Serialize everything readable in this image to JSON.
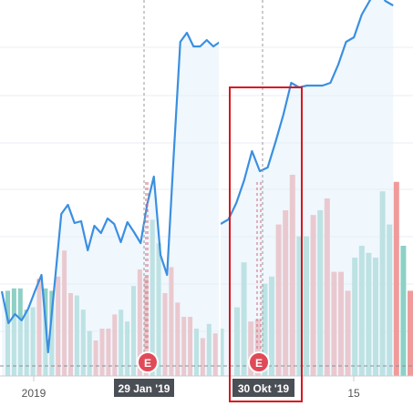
{
  "chart_data": [
    {
      "type": "bar+line",
      "title": "",
      "x_tick_labels": [
        "2019"
      ],
      "marker": {
        "letter": "E",
        "date_label": "29 Jan '19"
      },
      "colors": {
        "up": "#8ed0c5",
        "down": "#f09a9a",
        "line": "#3b8fe0",
        "area": "#e4f0fb",
        "marker": "#e04a58"
      },
      "volume_bars": [
        {
          "value": 36,
          "dir": "up"
        },
        {
          "value": 37,
          "dir": "up"
        },
        {
          "value": 37,
          "dir": "up"
        },
        {
          "value": 28,
          "dir": "up"
        },
        {
          "value": 29,
          "dir": "up"
        },
        {
          "value": 41,
          "dir": "down"
        },
        {
          "value": 37,
          "dir": "up"
        },
        {
          "value": 36,
          "dir": "up"
        },
        {
          "value": 42,
          "dir": "down"
        },
        {
          "value": 53,
          "dir": "down"
        },
        {
          "value": 35,
          "dir": "down"
        },
        {
          "value": 34,
          "dir": "up"
        },
        {
          "value": 28,
          "dir": "up"
        },
        {
          "value": 19,
          "dir": "up"
        },
        {
          "value": 15,
          "dir": "down"
        },
        {
          "value": 20,
          "dir": "down"
        },
        {
          "value": 20,
          "dir": "down"
        },
        {
          "value": 26,
          "dir": "down"
        },
        {
          "value": 28,
          "dir": "up"
        },
        {
          "value": 23,
          "dir": "up"
        },
        {
          "value": 38,
          "dir": "up"
        },
        {
          "value": 45,
          "dir": "down"
        },
        {
          "value": 42,
          "dir": "down"
        },
        {
          "value": 66,
          "dir": "up"
        },
        {
          "value": 56,
          "dir": "up"
        },
        {
          "value": 35,
          "dir": "down"
        },
        {
          "value": 46,
          "dir": "down"
        },
        {
          "value": 31,
          "dir": "down"
        },
        {
          "value": 25,
          "dir": "down"
        },
        {
          "value": 25,
          "dir": "down"
        },
        {
          "value": 20,
          "dir": "up"
        },
        {
          "value": 16,
          "dir": "down"
        },
        {
          "value": 22,
          "dir": "up"
        },
        {
          "value": 18,
          "dir": "down"
        },
        {
          "value": 20,
          "dir": "up"
        }
      ],
      "price_line": [
        126,
        91,
        101,
        94,
        107,
        126,
        144,
        59,
        135,
        211,
        221,
        201,
        203,
        171,
        198,
        190,
        206,
        200,
        180,
        202,
        191,
        179,
        222,
        252,
        166,
        144,
        275,
        400,
        410,
        395,
        395,
        402,
        395,
        400
      ]
    },
    {
      "type": "bar+line",
      "title": "",
      "x_tick_labels": [
        "15"
      ],
      "marker": {
        "letter": "E",
        "date_label": "30 Okt '19"
      },
      "highlight_box": {
        "from_date_label": "30 Okt '19"
      },
      "colors": {
        "up": "#8ed0c5",
        "down": "#f09a9a",
        "line": "#3b8fe0",
        "area": "#e4f0fb",
        "marker": "#e04a58"
      },
      "volume_bars": [
        {
          "value": 29,
          "dir": "up"
        },
        {
          "value": 48,
          "dir": "up"
        },
        {
          "value": 23,
          "dir": "down"
        },
        {
          "value": 24,
          "dir": "down"
        },
        {
          "value": 39,
          "dir": "up"
        },
        {
          "value": 42,
          "dir": "up"
        },
        {
          "value": 64,
          "dir": "down"
        },
        {
          "value": 70,
          "dir": "down"
        },
        {
          "value": 85,
          "dir": "down"
        },
        {
          "value": 59,
          "dir": "up"
        },
        {
          "value": 59,
          "dir": "up"
        },
        {
          "value": 68,
          "dir": "down"
        },
        {
          "value": 70,
          "dir": "up"
        },
        {
          "value": 75,
          "dir": "down"
        },
        {
          "value": 44,
          "dir": "down"
        },
        {
          "value": 44,
          "dir": "down"
        },
        {
          "value": 36,
          "dir": "down"
        },
        {
          "value": 50,
          "dir": "up"
        },
        {
          "value": 55,
          "dir": "up"
        },
        {
          "value": 52,
          "dir": "up"
        },
        {
          "value": 50,
          "dir": "up"
        },
        {
          "value": 78,
          "dir": "up"
        },
        {
          "value": 64,
          "dir": "up"
        },
        {
          "value": 82,
          "dir": "down"
        },
        {
          "value": 55,
          "dir": "up"
        },
        {
          "value": 36,
          "dir": "down"
        },
        {
          "value": 36,
          "dir": "up"
        }
      ],
      "price_line": [
        200,
        205,
        223,
        248,
        280,
        258,
        262,
        290,
        320,
        355,
        350,
        352,
        352,
        352,
        355,
        375,
        400,
        405,
        430,
        445,
        460,
        445,
        440
      ]
    }
  ]
}
